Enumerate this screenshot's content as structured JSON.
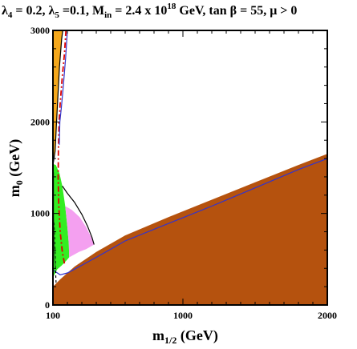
{
  "title": {
    "text": "λ4 = 0.2, λ5 =0.1, Min = 2.4 x 10^18 GeV, tan β = 55,  μ > 0",
    "lambda4": "4",
    "lambda4_val": " = 0.2, ",
    "lambda5": "5",
    "lambda5_val": " =0.1, M",
    "m_sub": "in",
    "m_val": " = 2.4 x 10",
    "exp": "18",
    "rest": " GeV, tan β = 55,  μ > 0"
  },
  "chart_data": {
    "type": "area",
    "title": "λ4 = 0.2, λ5 =0.1, Min = 2.4 x 10^18 GeV, tan β = 55,  μ > 0",
    "xlabel": "m1/2 (GeV)",
    "ylabel": "m0 (GeV)",
    "xlabel_main": "m",
    "xlabel_sub": "1/2",
    "xlabel_unit": " (GeV)",
    "ylabel_main": "m",
    "ylabel_sub": "0",
    "ylabel_unit": " (GeV)",
    "xlim": [
      100,
      2000
    ],
    "ylim": [
      0,
      3000
    ],
    "xticks": [
      100,
      1000,
      2000
    ],
    "yticks": [
      0,
      1000,
      2000,
      3000
    ],
    "grid": false,
    "colors": {
      "brown_region": "#b5520e",
      "orange_region": "#f5a81c",
      "green_region": "#33ee22",
      "pink_region": "#f4a0f0",
      "blue_strip": "#3333cc",
      "red_dashdot": "#dd0000"
    },
    "regions": [
      {
        "id": "brown",
        "points": [
          [
            100,
            200
          ],
          [
            100,
            0
          ],
          [
            2000,
            0
          ],
          [
            2000,
            1650
          ],
          [
            1800,
            1530
          ],
          [
            1500,
            1340
          ],
          [
            1200,
            1150
          ],
          [
            900,
            960
          ],
          [
            600,
            760
          ],
          [
            400,
            580
          ],
          [
            250,
            420
          ],
          [
            150,
            280
          ],
          [
            100,
            200
          ]
        ]
      },
      {
        "id": "orange",
        "points": [
          [
            100,
            3000
          ],
          [
            100,
            1530
          ],
          [
            115,
            1680
          ],
          [
            125,
            2000
          ],
          [
            135,
            2300
          ],
          [
            145,
            2600
          ],
          [
            160,
            2900
          ],
          [
            168,
            3000
          ]
        ]
      },
      {
        "id": "green",
        "points": [
          [
            100,
            1540
          ],
          [
            120,
            1530
          ],
          [
            145,
            1440
          ],
          [
            165,
            1300
          ],
          [
            185,
            1080
          ],
          [
            200,
            850
          ],
          [
            210,
            660
          ],
          [
            212,
            520
          ],
          [
            190,
            480
          ],
          [
            160,
            430
          ],
          [
            130,
            390
          ],
          [
            110,
            330
          ],
          [
            102,
            300
          ],
          [
            100,
            300
          ]
        ]
      },
      {
        "id": "pink",
        "points": [
          [
            185,
            1080
          ],
          [
            230,
            1040
          ],
          [
            285,
            960
          ],
          [
            330,
            850
          ],
          [
            368,
            730
          ],
          [
            385,
            660
          ],
          [
            330,
            610
          ],
          [
            280,
            580
          ],
          [
            240,
            545
          ],
          [
            212,
            520
          ],
          [
            210,
            660
          ],
          [
            200,
            850
          ]
        ]
      }
    ],
    "lines": [
      {
        "id": "black-boundary",
        "style": "solid",
        "color": "#000000",
        "points": [
          [
            100,
            1530
          ],
          [
            115,
            1680
          ],
          [
            125,
            2000
          ],
          [
            135,
            2300
          ],
          [
            145,
            2600
          ],
          [
            160,
            2900
          ],
          [
            168,
            3000
          ]
        ]
      },
      {
        "id": "black-arc",
        "style": "solid",
        "color": "#000000",
        "points": [
          [
            165,
            1300
          ],
          [
            200,
            1220
          ],
          [
            250,
            1120
          ],
          [
            300,
            990
          ],
          [
            340,
            860
          ],
          [
            370,
            740
          ],
          [
            385,
            660
          ]
        ]
      },
      {
        "id": "blue-strip",
        "style": "solid",
        "color": "#3333cc",
        "points": [
          [
            106,
            380
          ],
          [
            120,
            360
          ],
          [
            150,
            330
          ],
          [
            200,
            350
          ],
          [
            260,
            400
          ],
          [
            330,
            460
          ],
          [
            400,
            520
          ],
          [
            600,
            700
          ],
          [
            900,
            890
          ],
          [
            1200,
            1080
          ],
          [
            1500,
            1280
          ],
          [
            1800,
            1480
          ],
          [
            2000,
            1600
          ]
        ]
      },
      {
        "id": "red-dashdot",
        "style": "dashdot",
        "color": "#dd0000",
        "points": [
          [
            190,
            3000
          ],
          [
            180,
            2750
          ],
          [
            165,
            2500
          ],
          [
            150,
            2200
          ],
          [
            142,
            2000
          ],
          [
            138,
            1700
          ],
          [
            136,
            1400
          ],
          [
            140,
            1100
          ],
          [
            150,
            800
          ],
          [
            165,
            580
          ],
          [
            180,
            450
          ]
        ]
      },
      {
        "id": "blue-outline",
        "style": "solid",
        "color": "#3333cc",
        "points": [
          [
            200,
            3000
          ],
          [
            188,
            2700
          ],
          [
            172,
            2400
          ],
          [
            158,
            2150
          ],
          [
            148,
            2000
          ],
          [
            144,
            1750
          ]
        ]
      },
      {
        "id": "black-dashed",
        "style": "dashed",
        "color": "#000000",
        "points": [
          [
            108,
            900
          ],
          [
            112,
            700
          ],
          [
            116,
            500
          ],
          [
            120,
            300
          ],
          [
            122,
            220
          ]
        ]
      },
      {
        "id": "green-outline",
        "style": "solid",
        "color": "#226622",
        "points": [
          [
            104,
            1450
          ],
          [
            104,
            1000
          ],
          [
            108,
            700
          ],
          [
            112,
            500
          ],
          [
            118,
            390
          ]
        ]
      }
    ]
  }
}
